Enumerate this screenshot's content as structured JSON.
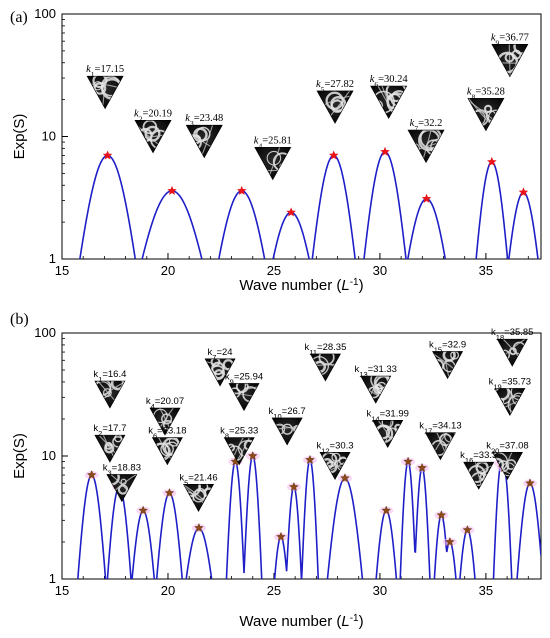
{
  "chart_data": [
    {
      "type": "line",
      "panel_label": "(a)",
      "ylabel": "Exp(S)",
      "xlabel_main": "Wave number (",
      "xlabel_unit": "L",
      "xlabel_exp": "-1",
      "xlabel_close": ")",
      "xlim": [
        15,
        37.6
      ],
      "ylim": [
        1,
        100
      ],
      "yscale": "log",
      "xticks": [
        "15",
        "20",
        "25",
        "30",
        "35"
      ],
      "yticks": [
        "1",
        "10",
        "100"
      ],
      "curve_color": "#1f1fc8",
      "marker_color": "#e8141a",
      "peaks": [
        {
          "label": "k",
          "sub": "1",
          "value": "=17.15",
          "x": 17.15,
          "y": 7.0
        },
        {
          "label": "k",
          "sub": "2",
          "value": "=20.19",
          "x": 20.19,
          "y": 3.6
        },
        {
          "label": "k",
          "sub": "3",
          "value": "=23.48",
          "x": 23.48,
          "y": 3.6
        },
        {
          "label": "k",
          "sub": "4",
          "value": "=25.81",
          "x": 25.81,
          "y": 2.4
        },
        {
          "label": "k",
          "sub": "5",
          "value": "=27.82",
          "x": 27.82,
          "y": 7.0
        },
        {
          "label": "k",
          "sub": "6",
          "value": "=30.24",
          "x": 30.24,
          "y": 7.5
        },
        {
          "label": "k",
          "sub": "7",
          "value": "=32.2",
          "x": 32.2,
          "y": 3.1
        },
        {
          "label": "k",
          "sub": "8",
          "value": "=35.28",
          "x": 35.28,
          "y": 6.2
        },
        {
          "label": "k",
          "sub": "9",
          "value": "=36.77",
          "x": 36.77,
          "y": 3.5
        }
      ]
    },
    {
      "type": "line",
      "panel_label": "(b)",
      "ylabel": "Exp(S)",
      "xlabel_main": "Wave number (",
      "xlabel_unit": "L",
      "xlabel_exp": "-1",
      "xlabel_close": ")",
      "xlim": [
        15,
        37.6
      ],
      "ylim": [
        1,
        100
      ],
      "yscale": "log",
      "xticks": [
        "15",
        "20",
        "25",
        "30",
        "35"
      ],
      "yticks": [
        "1",
        "10",
        "100"
      ],
      "curve_color": "#1f1fc8",
      "marker_color": "#8b4a1a",
      "peaks": [
        {
          "label": "k",
          "sub": "1",
          "value": "=16.4",
          "x": 16.4,
          "y": 7.0
        },
        {
          "label": "k",
          "sub": "2",
          "value": "=17.7",
          "x": 17.7,
          "y": 5.6
        },
        {
          "label": "k",
          "sub": "3",
          "value": "=18.83",
          "x": 18.83,
          "y": 3.6
        },
        {
          "label": "k",
          "sub": "4",
          "value": "=20.07",
          "x": 20.07,
          "y": 5.0
        },
        {
          "label": "k",
          "sub": "5",
          "value": "=21.46",
          "x": 21.46,
          "y": 2.6
        },
        {
          "label": "k",
          "sub": "6",
          "value": "=23.18",
          "x": 23.18,
          "y": 9.0
        },
        {
          "label": "k",
          "sub": "7",
          "value": "=24",
          "x": 24.0,
          "y": 10.0
        },
        {
          "label": "k",
          "sub": "8",
          "value": "=25.33",
          "x": 25.33,
          "y": 2.2
        },
        {
          "label": "k",
          "sub": "9",
          "value": "=25.94",
          "x": 25.94,
          "y": 5.6
        },
        {
          "label": "k",
          "sub": "10",
          "value": "=26.7",
          "x": 26.7,
          "y": 9.3
        },
        {
          "label": "k",
          "sub": "11",
          "value": "=28.35",
          "x": 28.35,
          "y": 6.6
        },
        {
          "label": "k",
          "sub": "12",
          "value": "=30.3",
          "x": 30.3,
          "y": 3.6
        },
        {
          "label": "k",
          "sub": "13",
          "value": "=31.33",
          "x": 31.33,
          "y": 9.0
        },
        {
          "label": "k",
          "sub": "14",
          "value": "=31.99",
          "x": 31.99,
          "y": 8.0
        },
        {
          "label": "k",
          "sub": "15",
          "value": "=32.9",
          "x": 32.9,
          "y": 3.3
        },
        {
          "label": "k",
          "sub": "16",
          "value": "=33.3",
          "x": 33.3,
          "y": 2.0
        },
        {
          "label": "k",
          "sub": "17",
          "value": "=34.13",
          "x": 34.13,
          "y": 2.5
        },
        {
          "label": "k",
          "sub": "18",
          "value": "=35.85",
          "x": 35.85,
          "y": 8.0
        },
        {
          "label": "k",
          "sub": "19",
          "value": "=35.73",
          "x": 35.73,
          "y": 8.7
        },
        {
          "label": "k",
          "sub": "20",
          "value": "=37.08",
          "x": 37.08,
          "y": 6.0
        }
      ]
    }
  ]
}
